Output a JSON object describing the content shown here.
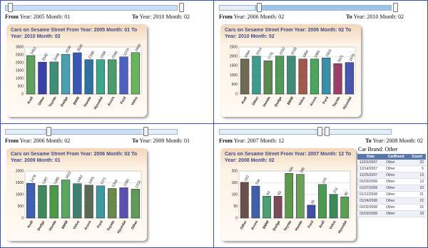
{
  "panels": [
    {
      "from": "From",
      "from_value": "Year: 2005 Month: 01",
      "to": "To",
      "to_value": "Year: 2010 Month: 02"
    },
    {
      "from": "From",
      "from_value": "Year: 2006 Month: 02",
      "to": "To",
      "to_value": "Year: 2010 Month: 02"
    },
    {
      "from": "From",
      "from_value": "Year: 2006 Month: 02",
      "to": "To",
      "to_value": "Year: 2009 Month: 01"
    },
    {
      "from": "From",
      "from_value": "Year: 2007 Month: 12",
      "to": "To",
      "to_value": "Year: 2008 Month: 02"
    }
  ],
  "chart_data": [
    {
      "type": "bar",
      "title": "Cars on Sesame Street From Year: 2005 Month: 01 To Year: 2010 Month: 02",
      "categories": [
        "Audi",
        "Other",
        "Toyota",
        "Dodge",
        "BMW",
        "Honda",
        "Hyundai",
        "Acura",
        "Ford",
        "Volvo"
      ],
      "values": [
        2453,
        2040,
        2049,
        2530,
        2636,
        2198,
        2196,
        2196,
        2376,
        2646
      ],
      "colors": [
        "#5fa25a",
        "#3b3fa8",
        "#3f8f78",
        "#48a0b0",
        "#3858b8",
        "#2f70a0",
        "#3aa888",
        "#4a9c6a",
        "#4d5fbf",
        "#6ab45e"
      ],
      "ylim": [
        0,
        3000
      ],
      "yticks": [
        0,
        500,
        1000,
        1500,
        2000,
        2500,
        3000
      ],
      "grid": true
    },
    {
      "type": "bar",
      "title": "Cars on Sesame Street From Year: 2006 Month: 02 To Year: 2010 Month: 02",
      "categories": [
        "Audi",
        "Other",
        "Honda",
        "Dodge",
        "BMW",
        "Volvo",
        "Acura",
        "Ford",
        "Toyota",
        "Hyundai"
      ],
      "values": [
        1864,
        2014,
        1775,
        2020,
        2018,
        1866,
        1865,
        1920,
        1621,
        1679
      ],
      "colors": [
        "#6f6a52",
        "#3c9c8c",
        "#5a8a4e",
        "#4f9d55",
        "#3f8a78",
        "#a05a4a",
        "#4aa55c",
        "#3a8fa8",
        "#9a3f6a",
        "#4a56b0"
      ],
      "ylim": [
        0,
        2500
      ],
      "yticks": [
        0,
        500,
        1000,
        1500,
        2000,
        2500
      ],
      "grid": true
    },
    {
      "type": "bar",
      "title": "Cars on Sesame Street From Year: 2006 Month: 02 To Year: 2009 Month: 01",
      "categories": [
        "Audi",
        "Dodge",
        "Honda",
        "BMW",
        "Volvo",
        "Acura",
        "Ford",
        "Toyota",
        "Hyundai",
        "Other"
      ],
      "values": [
        1476,
        1387,
        1385,
        1622,
        1462,
        1401,
        1371,
        1258,
        1290,
        1232
      ],
      "colors": [
        "#3f5fb0",
        "#3e8a5e",
        "#4a9a48",
        "#5aa860",
        "#3c8070",
        "#5a6a50",
        "#3a9aa0",
        "#6a8a48",
        "#5a4fb0",
        "#5f9a58"
      ],
      "ylim": [
        0,
        2000
      ],
      "yticks": [
        0,
        500,
        1000,
        1500,
        2000
      ],
      "grid": true
    },
    {
      "type": "bar",
      "title": "Cars on Sesame Street From Year: 2007 Month: 12 To Year: 2008 Month: 02",
      "categories": [
        "Other",
        "Acura",
        "BMW",
        "Dodge",
        "Toyota",
        "Honda",
        "Ford",
        "Audi",
        "Volvo",
        "Hyundai"
      ],
      "values": [
        152,
        136,
        93,
        93,
        190,
        186,
        55,
        143,
        101,
        90
      ],
      "colors": [
        "#6a5048",
        "#3f5fa8",
        "#4aa070",
        "#7a4a5a",
        "#5a9a48",
        "#6aa058",
        "#3f4fa8",
        "#4c9a50",
        "#3a8a58",
        "#5aa050"
      ],
      "ylim": [
        0,
        200
      ],
      "yticks": [
        0,
        50,
        100,
        150,
        200
      ],
      "grid": true
    }
  ],
  "table": {
    "title": "Car Brand: Other",
    "columns": [
      "Date",
      "CarBrand",
      "Count"
    ],
    "rows": [
      [
        "12/01/2007",
        "Other",
        22
      ],
      [
        "12/14/2007",
        "Other",
        5
      ],
      [
        "12/25/2007",
        "Other",
        13
      ],
      [
        "01/03/2008",
        "Other",
        13
      ],
      [
        "01/07/2008",
        "Other",
        23
      ],
      [
        "01/12/2008",
        "Other",
        21
      ],
      [
        "01/24/2008",
        "Other",
        22
      ],
      [
        "02/02/2008",
        "Other",
        15
      ],
      [
        "02/03/2008",
        "Other",
        18
      ]
    ]
  }
}
